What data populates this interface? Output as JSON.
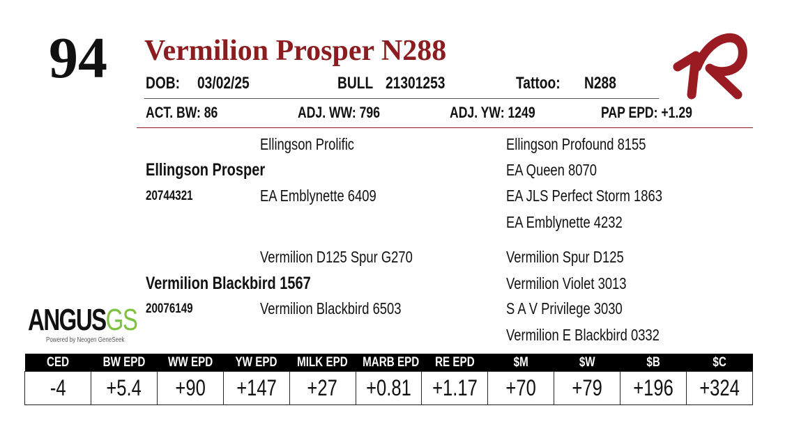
{
  "lot": "94",
  "title": "Vermilion Prosper N288",
  "info": {
    "dob_label": "DOB:",
    "dob": "03/02/25",
    "sex": "BULL",
    "registration": "21301253",
    "tattoo_label": "Tattoo:",
    "tattoo": "N288"
  },
  "stats": [
    "ACT. BW: 86",
    "ADJ. WW: 796",
    "ADJ. YW: 1249",
    "PAP EPD: +1.29"
  ],
  "pedigree": {
    "sire": {
      "name": "Ellingson Prosper",
      "registration": "20744321",
      "sire": "Ellingson Prolific",
      "dam": "EA Emblynette 6409",
      "grandparents": [
        "Ellingson Profound 8155",
        "EA Queen 8070",
        "EA JLS Perfect Storm 1863",
        "EA Emblynette 4232"
      ]
    },
    "dam": {
      "name": "Vermilion Blackbird 1567",
      "registration": "20076149",
      "sire": "Vermilion D125 Spur G270",
      "dam": "Vermilion Blackbird 6503",
      "grandparents": [
        "Vermilion Spur D125",
        "Vermilion Violet 3013",
        "S A V Privilege 3030",
        "Vermilion E Blackbird 0332"
      ]
    }
  },
  "logo": {
    "main": "ANGUS",
    "suffix": "GS",
    "tagline": "Powered by Neogen GeneSeek"
  },
  "epd_table": {
    "headers": [
      "CED",
      "BW EPD",
      "WW EPD",
      "YW EPD",
      "MILK EPD",
      "MARB EPD",
      "RE EPD",
      "$M",
      "$W",
      "$B",
      "$C"
    ],
    "values": [
      "-4",
      "+5.4",
      "+90",
      "+147",
      "+27",
      "+0.81",
      "+1.17",
      "+70",
      "+79",
      "+196",
      "+324"
    ]
  }
}
